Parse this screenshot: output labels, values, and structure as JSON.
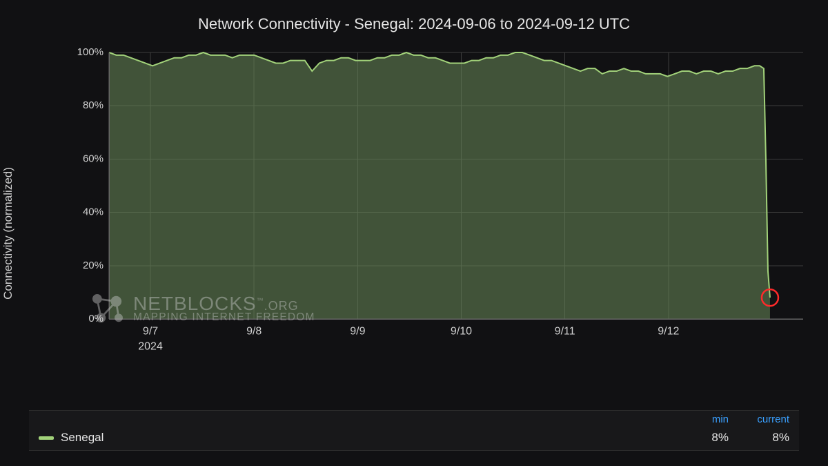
{
  "chart": {
    "type": "area",
    "title": "Network Connectivity - Senegal: 2024-09-06 to 2024-09-12 UTC",
    "title_fontsize": 22,
    "title_color": "#e6e6e6",
    "ylabel": "Connectivity (normalized)",
    "ylabel_fontsize": 17,
    "background_color": "#111113",
    "grid_color": "#3d3d3d",
    "axis_color": "#666666",
    "tick_label_color": "#d0d0d0",
    "tick_fontsize": 15,
    "xtick_fontsize": 16,
    "ylim": [
      0,
      100
    ],
    "yticks": [
      0,
      20,
      40,
      60,
      80,
      100
    ],
    "ytick_labels": [
      "0%",
      "20%",
      "40%",
      "60%",
      "80%",
      "100%"
    ],
    "xlim": [
      0,
      6.7
    ],
    "xticks": [
      0.4,
      1.4,
      2.4,
      3.4,
      4.4,
      5.4
    ],
    "xtick_labels": [
      "9/7",
      "9/8",
      "9/9",
      "9/10",
      "9/11",
      "9/12"
    ],
    "xtick_year_label": "2024",
    "xtick_year_at": 0.4,
    "series": {
      "name": "Senegal",
      "line_color": "#a2d27a",
      "line_width": 2,
      "fill_color": "#6a8a5a",
      "fill_opacity": 0.55,
      "endpoint_marker_color": "#ff2a2a",
      "endpoint_marker_radius": 12,
      "x": [
        0.0,
        0.07,
        0.14,
        0.21,
        0.28,
        0.35,
        0.42,
        0.49,
        0.56,
        0.63,
        0.7,
        0.77,
        0.84,
        0.91,
        0.98,
        1.05,
        1.12,
        1.19,
        1.26,
        1.33,
        1.4,
        1.47,
        1.54,
        1.61,
        1.68,
        1.75,
        1.82,
        1.89,
        1.96,
        2.03,
        2.1,
        2.17,
        2.24,
        2.31,
        2.38,
        2.45,
        2.52,
        2.59,
        2.66,
        2.73,
        2.8,
        2.87,
        2.94,
        3.01,
        3.08,
        3.15,
        3.22,
        3.29,
        3.36,
        3.43,
        3.5,
        3.57,
        3.64,
        3.71,
        3.78,
        3.85,
        3.92,
        3.99,
        4.06,
        4.13,
        4.2,
        4.27,
        4.34,
        4.41,
        4.48,
        4.55,
        4.62,
        4.69,
        4.76,
        4.83,
        4.9,
        4.97,
        5.04,
        5.11,
        5.18,
        5.25,
        5.32,
        5.39,
        5.46,
        5.53,
        5.6,
        5.67,
        5.74,
        5.81,
        5.88,
        5.95,
        6.02,
        6.09,
        6.16,
        6.23,
        6.28,
        6.32,
        6.34,
        6.36,
        6.38
      ],
      "y": [
        100,
        99,
        99,
        98,
        97,
        96,
        95,
        96,
        97,
        98,
        98,
        99,
        99,
        100,
        99,
        99,
        99,
        98,
        99,
        99,
        99,
        98,
        97,
        96,
        96,
        97,
        97,
        97,
        93,
        96,
        97,
        97,
        98,
        98,
        97,
        97,
        97,
        98,
        98,
        99,
        99,
        100,
        99,
        99,
        98,
        98,
        97,
        96,
        96,
        96,
        97,
        97,
        98,
        98,
        99,
        99,
        100,
        100,
        99,
        98,
        97,
        97,
        96,
        95,
        94,
        93,
        94,
        94,
        92,
        93,
        93,
        94,
        93,
        93,
        92,
        92,
        92,
        91,
        92,
        93,
        93,
        92,
        93,
        93,
        92,
        93,
        93,
        94,
        94,
        95,
        95,
        94,
        60,
        18,
        8
      ]
    }
  },
  "watermark": {
    "line1_main": "NETBLOCKS",
    "line1_suffix": ".ORG",
    "line1_tm": "™",
    "line2": "MAPPING INTERNET FREEDOM",
    "color": "#cfcfcf",
    "opacity": 0.42
  },
  "legend": {
    "header_color": "#3aa0ff",
    "col1": "min",
    "col2": "current",
    "rows": [
      {
        "swatch_color": "#a2d27a",
        "label": "Senegal",
        "min": "8%",
        "current": "8%"
      }
    ]
  }
}
